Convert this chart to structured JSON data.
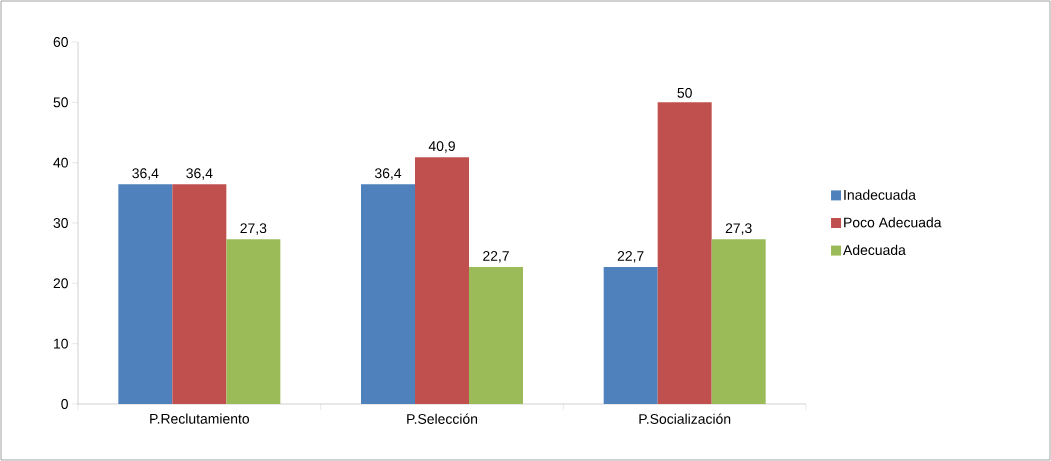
{
  "chart_data": {
    "type": "bar",
    "categories": [
      "P.Reclutamiento",
      "P.Selección",
      "P.Socialización"
    ],
    "series": [
      {
        "name": "Inadecuada",
        "color": "#4f81bd",
        "values": [
          36.4,
          36.4,
          22.7
        ],
        "value_labels": [
          "36,4",
          "36,4",
          "22,7"
        ]
      },
      {
        "name": "Poco Adecuada",
        "color": "#c0504d",
        "values": [
          36.4,
          40.9,
          50
        ],
        "value_labels": [
          "36,4",
          "40,9",
          "50"
        ]
      },
      {
        "name": "Adecuada",
        "color": "#9bbb59",
        "values": [
          27.3,
          22.7,
          27.3
        ],
        "value_labels": [
          "27,3",
          "22,7",
          "27,3"
        ]
      }
    ],
    "ylim": [
      0,
      60
    ],
    "yticks": [
      0,
      10,
      20,
      30,
      40,
      50,
      60
    ],
    "legend": "right"
  }
}
